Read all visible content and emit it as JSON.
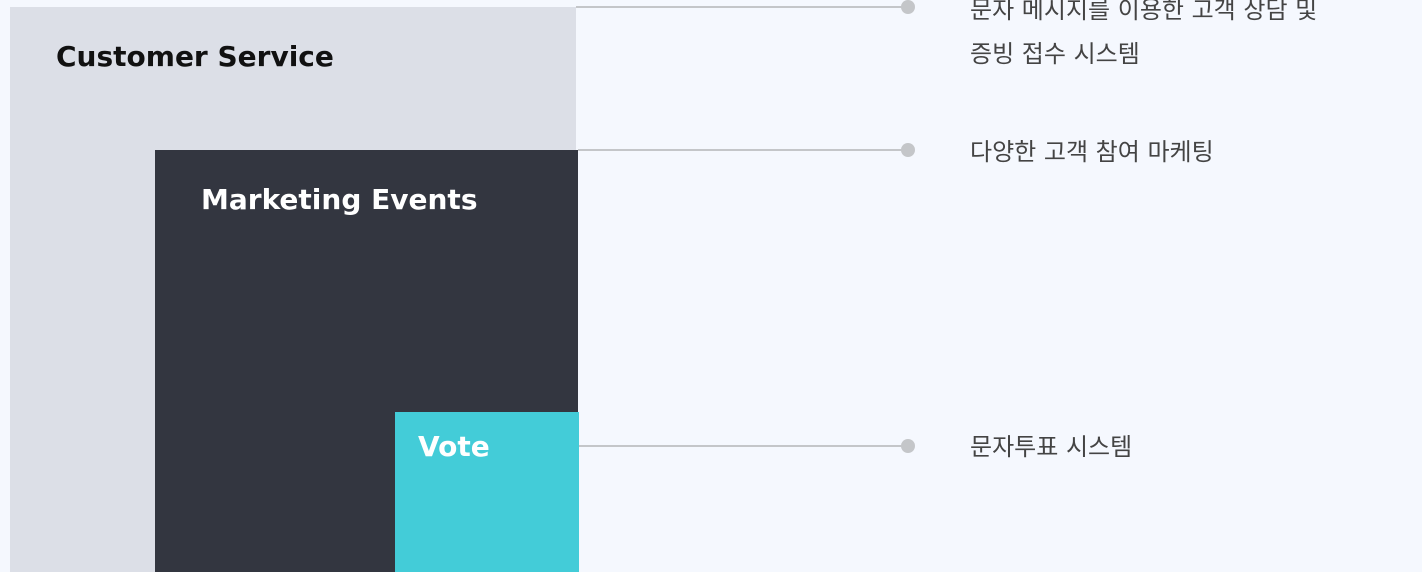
{
  "blocks": [
    {
      "label": "Customer Service",
      "description": "문자 메시지를 이용한 고객 상담 및\n증빙 접수 시스템"
    },
    {
      "label": "Marketing Events",
      "description": "다양한 고객 참여 마케팅"
    },
    {
      "label": "Vote",
      "description": "문자투표 시스템"
    }
  ]
}
